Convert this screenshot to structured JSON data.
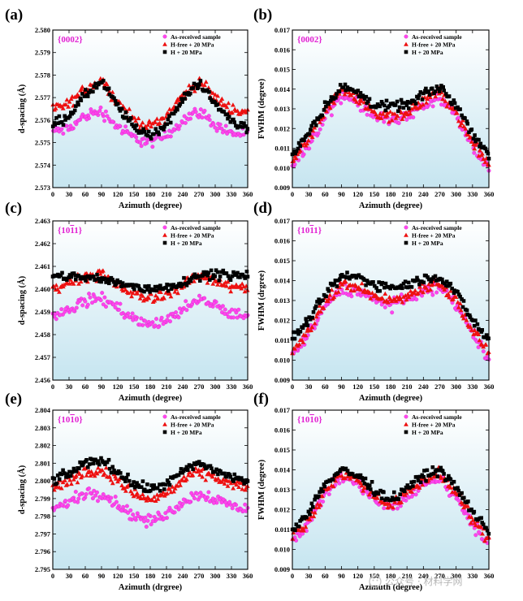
{
  "colors": {
    "as_received": "#ff44ee",
    "h_free": "#ee1111",
    "h_20": "#000000",
    "plane_label": "#e21fd3",
    "bg_top": "#ffffff",
    "bg_bottom": "#c9e6f0"
  },
  "watermark": {
    "icon": "wechat-logo-icon",
    "text": "公众号 · 材料学网"
  },
  "chart_data": [
    {
      "panel": "(a)",
      "type": "scatter",
      "plane": "{0002}",
      "xlabel": "Azimuth (degree)",
      "ylabel": "d-spacing (Å)",
      "xlim": [
        0,
        360
      ],
      "ylim": [
        2.573,
        2.58
      ],
      "xticks": [
        "0",
        "30",
        "60",
        "90",
        "120",
        "150",
        "180",
        "210",
        "240",
        "270",
        "300",
        "330",
        "360"
      ],
      "yticks": [
        "2.573",
        "2.574",
        "2.575",
        "2.576",
        "2.577",
        "2.578",
        "2.579",
        "2.580"
      ],
      "legend": [
        "As-received sample",
        "H-free + 20 MPa",
        "H + 20 MPa"
      ],
      "series": [
        {
          "name": "As-received sample",
          "marker": "circle",
          "x": [
            0,
            30,
            60,
            90,
            120,
            150,
            180,
            210,
            240,
            270,
            300,
            330,
            360
          ],
          "y": [
            2.5755,
            2.5756,
            2.5762,
            2.5764,
            2.5757,
            2.5752,
            2.575,
            2.5753,
            2.576,
            2.5764,
            2.5758,
            2.5754,
            2.5754
          ]
        },
        {
          "name": "H-free + 20 MPa",
          "marker": "triangle",
          "x": [
            0,
            30,
            60,
            90,
            120,
            150,
            180,
            210,
            240,
            270,
            300,
            330,
            360
          ],
          "y": [
            2.5765,
            2.5767,
            2.5774,
            2.5778,
            2.5768,
            2.576,
            2.5757,
            2.5762,
            2.5771,
            2.5777,
            2.577,
            2.5765,
            2.5763
          ]
        },
        {
          "name": "H + 20 MPa",
          "marker": "square",
          "x": [
            0,
            30,
            60,
            90,
            120,
            150,
            180,
            210,
            240,
            270,
            300,
            330,
            360
          ],
          "y": [
            2.5758,
            2.5762,
            2.5771,
            2.5777,
            2.5766,
            2.5757,
            2.5753,
            2.5758,
            2.5769,
            2.5777,
            2.5767,
            2.576,
            2.5756
          ]
        }
      ]
    },
    {
      "panel": "(b)",
      "type": "scatter",
      "plane": "{0002}",
      "xlabel": "Azimuth (degree)",
      "ylabel": "FWHM (degree)",
      "xlim": [
        0,
        360
      ],
      "ylim": [
        0.009,
        0.017
      ],
      "xticks": [
        "0",
        "30",
        "60",
        "90",
        "120",
        "150",
        "180",
        "210",
        "240",
        "270",
        "300",
        "330",
        "360"
      ],
      "yticks": [
        "0.009",
        "0.010",
        "0.011",
        "0.012",
        "0.013",
        "0.014",
        "0.015",
        "0.016",
        "0.017"
      ],
      "legend": [
        "As-received sample",
        "H-free + 20 MPa",
        "H + 20 MPa"
      ],
      "series": [
        {
          "name": "As-received sample",
          "marker": "circle",
          "x": [
            0,
            30,
            60,
            90,
            120,
            150,
            180,
            210,
            240,
            270,
            300,
            330,
            360
          ],
          "y": [
            0.0101,
            0.0112,
            0.0126,
            0.0137,
            0.0133,
            0.0126,
            0.0124,
            0.0126,
            0.0132,
            0.0136,
            0.0126,
            0.0111,
            0.0101
          ]
        },
        {
          "name": "H-free + 20 MPa",
          "marker": "triangle",
          "x": [
            0,
            30,
            60,
            90,
            120,
            150,
            180,
            210,
            240,
            270,
            300,
            330,
            360
          ],
          "y": [
            0.0103,
            0.0114,
            0.0129,
            0.014,
            0.0135,
            0.0128,
            0.0126,
            0.0128,
            0.0134,
            0.0139,
            0.0128,
            0.0113,
            0.0102
          ]
        },
        {
          "name": "H + 20 MPa",
          "marker": "square",
          "x": [
            0,
            30,
            60,
            90,
            120,
            150,
            180,
            210,
            240,
            270,
            300,
            330,
            360
          ],
          "y": [
            0.0107,
            0.0118,
            0.0131,
            0.0141,
            0.0138,
            0.0132,
            0.0131,
            0.0132,
            0.0137,
            0.0141,
            0.0132,
            0.0118,
            0.0106
          ]
        }
      ]
    },
    {
      "panel": "(c)",
      "type": "scatter",
      "plane": "{10-11}",
      "xlabel": "Azimuth (degree)",
      "ylabel": "d-spacing (Å)",
      "xlim": [
        0,
        360
      ],
      "ylim": [
        2.456,
        2.463
      ],
      "xticks": [
        "0",
        "30",
        "60",
        "90",
        "120",
        "150",
        "180",
        "210",
        "240",
        "270",
        "300",
        "330",
        "360"
      ],
      "yticks": [
        "2.456",
        "2.457",
        "2.458",
        "2.459",
        "2.460",
        "2.461",
        "2.462",
        "2.463"
      ],
      "legend": [
        "As-received sample",
        "H-free + 20 MPa",
        "H + 20 MPa"
      ],
      "series": [
        {
          "name": "As-received sample",
          "marker": "circle",
          "x": [
            0,
            30,
            60,
            90,
            120,
            150,
            180,
            210,
            240,
            270,
            300,
            330,
            360
          ],
          "y": [
            2.4588,
            2.4591,
            2.4595,
            2.4596,
            2.4592,
            2.4587,
            2.4584,
            2.4586,
            2.4591,
            2.4595,
            2.4593,
            2.4589,
            2.4588
          ]
        },
        {
          "name": "H-free + 20 MPa",
          "marker": "triangle",
          "x": [
            0,
            30,
            60,
            90,
            120,
            150,
            180,
            210,
            240,
            270,
            300,
            330,
            360
          ],
          "y": [
            2.46,
            2.4603,
            2.4606,
            2.4606,
            2.4602,
            2.4598,
            2.4596,
            2.4598,
            2.4602,
            2.4606,
            2.4604,
            2.4601,
            2.46
          ]
        },
        {
          "name": "H + 20 MPa",
          "marker": "square",
          "x": [
            0,
            30,
            60,
            90,
            120,
            150,
            180,
            210,
            240,
            270,
            300,
            330,
            360
          ],
          "y": [
            2.4605,
            2.4606,
            2.4605,
            2.4604,
            2.4603,
            2.4601,
            2.46,
            2.4601,
            2.4603,
            2.4606,
            2.4607,
            2.4606,
            2.4606
          ]
        }
      ]
    },
    {
      "panel": "(d)",
      "type": "scatter",
      "plane": "{10-11}",
      "xlabel": "Azimuth (degree)",
      "ylabel": "FWHM (drgree)",
      "xlim": [
        0,
        360
      ],
      "ylim": [
        0.009,
        0.017
      ],
      "xticks": [
        "0",
        "30",
        "60",
        "90",
        "120",
        "150",
        "180",
        "210",
        "240",
        "270",
        "300",
        "330",
        "360"
      ],
      "yticks": [
        "0.009",
        "0.010",
        "0.011",
        "0.012",
        "0.013",
        "0.014",
        "0.015",
        "0.016",
        "0.017"
      ],
      "legend": [
        "As-received sample",
        "H-free + 20 MPa",
        "H + 20 MPa"
      ],
      "series": [
        {
          "name": "As-received sample",
          "marker": "circle",
          "x": [
            0,
            30,
            60,
            90,
            120,
            150,
            180,
            210,
            240,
            270,
            300,
            330,
            360
          ],
          "y": [
            0.0102,
            0.0113,
            0.0127,
            0.0136,
            0.0135,
            0.013,
            0.0128,
            0.013,
            0.0135,
            0.0137,
            0.0128,
            0.0113,
            0.0102
          ]
        },
        {
          "name": "H-free + 20 MPa",
          "marker": "triangle",
          "x": [
            0,
            30,
            60,
            90,
            120,
            150,
            180,
            210,
            240,
            270,
            300,
            330,
            360
          ],
          "y": [
            0.0104,
            0.0115,
            0.0129,
            0.0138,
            0.0137,
            0.0132,
            0.013,
            0.0132,
            0.0137,
            0.0139,
            0.013,
            0.0115,
            0.0104
          ]
        },
        {
          "name": "H + 20 MPa",
          "marker": "square",
          "x": [
            0,
            30,
            60,
            90,
            120,
            150,
            180,
            210,
            240,
            270,
            300,
            330,
            360
          ],
          "y": [
            0.0111,
            0.012,
            0.0133,
            0.0142,
            0.0142,
            0.0138,
            0.0137,
            0.0138,
            0.0141,
            0.0142,
            0.0134,
            0.012,
            0.011
          ]
        }
      ]
    },
    {
      "panel": "(e)",
      "type": "scatter",
      "plane": "{10-10}",
      "xlabel": "Azimuth (drgree)",
      "ylabel": "d-spacing (Å)",
      "xlim": [
        0,
        360
      ],
      "ylim": [
        2.795,
        2.804
      ],
      "xticks": [
        "0",
        "30",
        "60",
        "90",
        "120",
        "150",
        "180",
        "210",
        "240",
        "270",
        "300",
        "330",
        "360"
      ],
      "yticks": [
        "2.795",
        "2.796",
        "2.797",
        "2.798",
        "2.799",
        "2.800",
        "2.801",
        "2.802",
        "2.803",
        "2.804"
      ],
      "legend": [
        "As-received sample",
        "H-free + 20 MPa",
        "H + 20 MPa"
      ],
      "series": [
        {
          "name": "As-received sample",
          "marker": "circle",
          "x": [
            0,
            30,
            60,
            90,
            120,
            150,
            180,
            210,
            240,
            270,
            300,
            330,
            360
          ],
          "y": [
            2.7984,
            2.7988,
            2.7993,
            2.7993,
            2.7987,
            2.798,
            2.7977,
            2.7981,
            2.7988,
            2.7993,
            2.799,
            2.7986,
            2.7984
          ]
        },
        {
          "name": "H-free + 20 MPa",
          "marker": "triangle",
          "x": [
            0,
            30,
            60,
            90,
            120,
            150,
            180,
            210,
            240,
            270,
            300,
            330,
            360
          ],
          "y": [
            2.7996,
            2.8,
            2.8005,
            2.8006,
            2.8,
            2.7993,
            2.7989,
            2.7993,
            2.8,
            2.8005,
            2.8002,
            2.7998,
            2.7996
          ]
        },
        {
          "name": "H + 20 MPa",
          "marker": "square",
          "x": [
            0,
            30,
            60,
            90,
            120,
            150,
            180,
            210,
            240,
            270,
            300,
            330,
            360
          ],
          "y": [
            2.8,
            2.8004,
            2.801,
            2.8012,
            2.8005,
            2.7998,
            2.7995,
            2.7998,
            2.8005,
            2.801,
            2.8006,
            2.8002,
            2.8
          ]
        }
      ]
    },
    {
      "panel": "(f)",
      "type": "scatter",
      "plane": "{10-10}",
      "xlabel": "Azimuth (degree)",
      "ylabel": "FWHM (degree)",
      "xlim": [
        0,
        360
      ],
      "ylim": [
        0.009,
        0.017
      ],
      "xticks": [
        "0",
        "30",
        "60",
        "90",
        "120",
        "150",
        "180",
        "210",
        "240",
        "270",
        "300",
        "330",
        "360"
      ],
      "yticks": [
        "0.009",
        "0.010",
        "0.011",
        "0.012",
        "0.013",
        "0.014",
        "0.015",
        "0.016",
        "0.017"
      ],
      "legend": [
        "As-received sample",
        "H-free + 20 MPa",
        "H + 20 MPa"
      ],
      "series": [
        {
          "name": "As-received sample",
          "marker": "circle",
          "x": [
            0,
            30,
            60,
            90,
            120,
            150,
            180,
            210,
            240,
            270,
            300,
            330,
            360
          ],
          "y": [
            0.0104,
            0.0113,
            0.0128,
            0.0136,
            0.0133,
            0.0125,
            0.012,
            0.0126,
            0.0133,
            0.0136,
            0.0126,
            0.0113,
            0.0103
          ]
        },
        {
          "name": "H-free + 20 MPa",
          "marker": "triangle",
          "x": [
            0,
            30,
            60,
            90,
            120,
            150,
            180,
            210,
            240,
            270,
            300,
            330,
            360
          ],
          "y": [
            0.0106,
            0.0115,
            0.013,
            0.0138,
            0.0135,
            0.0127,
            0.0122,
            0.0128,
            0.0135,
            0.0138,
            0.0128,
            0.0115,
            0.0105
          ]
        },
        {
          "name": "H + 20 MPa",
          "marker": "square",
          "x": [
            0,
            30,
            60,
            90,
            120,
            150,
            180,
            210,
            240,
            270,
            300,
            330,
            360
          ],
          "y": [
            0.011,
            0.0119,
            0.0133,
            0.014,
            0.0137,
            0.013,
            0.0125,
            0.0131,
            0.0137,
            0.014,
            0.0131,
            0.0119,
            0.0109
          ]
        }
      ]
    }
  ]
}
